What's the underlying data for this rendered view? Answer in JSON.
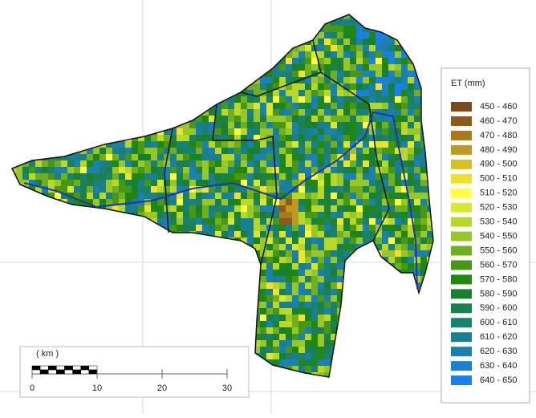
{
  "legend": {
    "title": "ET  (mm)",
    "items": [
      {
        "label": "450 - 460",
        "color": "#7a4a1a"
      },
      {
        "label": "460 - 470",
        "color": "#8f5a17"
      },
      {
        "label": "470 - 480",
        "color": "#a87a1c"
      },
      {
        "label": "480 - 490",
        "color": "#c09a20"
      },
      {
        "label": "490 - 500",
        "color": "#d8c020"
      },
      {
        "label": "500 - 510",
        "color": "#f0e030"
      },
      {
        "label": "510 - 520",
        "color": "#ffff40"
      },
      {
        "label": "520 - 530",
        "color": "#d8e830"
      },
      {
        "label": "530 - 540",
        "color": "#b8d828"
      },
      {
        "label": "540 - 550",
        "color": "#98c828"
      },
      {
        "label": "550 - 560",
        "color": "#70b020"
      },
      {
        "label": "560 - 570",
        "color": "#489818"
      },
      {
        "label": "570 - 580",
        "color": "#208810"
      },
      {
        "label": "580 - 590",
        "color": "#188030"
      },
      {
        "label": "590 - 600",
        "color": "#1a8050"
      },
      {
        "label": "600 - 610",
        "color": "#1a8070"
      },
      {
        "label": "610 - 620",
        "color": "#1a8090"
      },
      {
        "label": "620 - 630",
        "color": "#1a80b0"
      },
      {
        "label": "630 - 640",
        "color": "#1a80d0"
      },
      {
        "label": "640 - 650",
        "color": "#1a80f0"
      }
    ]
  },
  "scale_bar": {
    "unit": "( km )",
    "ticks": [
      0,
      10,
      20,
      30
    ]
  }
}
